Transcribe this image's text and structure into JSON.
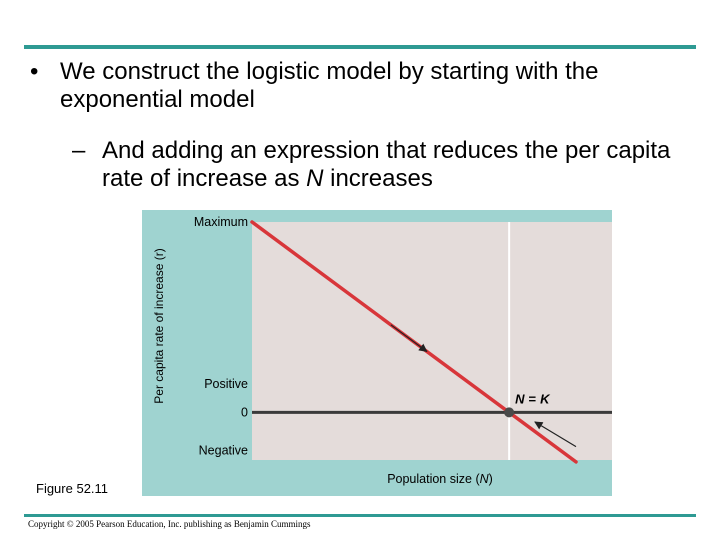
{
  "slide": {
    "bullet1": {
      "marker": "•",
      "text": "We construct the logistic model by starting with the exponential model"
    },
    "bullet2": {
      "marker": "–",
      "text_before": "And adding an expression that reduces the per capita rate of increase as ",
      "text_var": "N",
      "text_after": " increases"
    },
    "figure_label": "Figure 52.11",
    "copyright": "Copyright © 2005 Pearson Education, Inc. publishing as Benjamin Cummings"
  },
  "colors": {
    "rule": "#2e9a93",
    "frame": "#9fd3d0",
    "plot_bg": "#e4dcda",
    "line": "#d8363a",
    "zero_line": "#3a3a3a"
  },
  "chart_data": {
    "type": "line",
    "title": "",
    "ylabel": "Per capita rate of increase (r)",
    "xlabel_before": "Population size (",
    "xlabel_var": "N",
    "xlabel_after": ")",
    "xlim": [
      0,
      1.4
    ],
    "ylim": [
      -0.25,
      1
    ],
    "y_ticks": [
      {
        "value": 1,
        "label": "Maximum"
      },
      {
        "value": 0.15,
        "label": "Positive"
      },
      {
        "value": 0,
        "label": "0"
      },
      {
        "value": -0.2,
        "label": "Negative"
      }
    ],
    "series": [
      {
        "x": [
          0,
          1.26
        ],
        "y": [
          1,
          -0.26
        ]
      }
    ],
    "carrying_capacity": {
      "x": 1,
      "y": 0,
      "label_N": "N",
      "label_eq": "=",
      "label_K": "K"
    },
    "arrows": [
      {
        "from": [
          0.54,
          0.46
        ],
        "to": [
          0.68,
          0.32
        ]
      },
      {
        "from": [
          1.26,
          -0.18
        ],
        "to": [
          1.1,
          -0.05
        ]
      }
    ],
    "grid": false
  }
}
